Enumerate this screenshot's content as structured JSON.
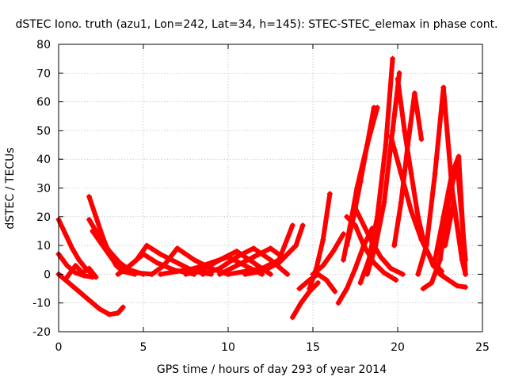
{
  "chart_data": {
    "type": "scatter",
    "title": "dSTEC Iono. truth (azu1, Lon=242, Lat=34, h=145): STEC-STEC_elemax in phase cont.",
    "xlabel": "GPS time / hours of day 293 of year 2014",
    "ylabel": "dSTEC  / TECUs",
    "xlim": [
      0,
      25
    ],
    "ylim": [
      -20,
      80
    ],
    "x_ticks": [
      "0",
      "5",
      "10",
      "15",
      "20",
      "25"
    ],
    "y_ticks": [
      "-20",
      "-10",
      "0",
      "10",
      "20",
      "30",
      "40",
      "50",
      "60",
      "70",
      "80"
    ],
    "grid": true,
    "marker": "+",
    "color": "#ff0000",
    "series": [
      {
        "x": [
          0.0,
          0.3,
          0.7,
          1.2,
          1.8,
          2.4,
          3.0,
          3.5,
          3.8
        ],
        "y": [
          0.0,
          -1.5,
          -3.5,
          -6.0,
          -9.0,
          -12.0,
          -14.0,
          -13.5,
          -11.5
        ]
      },
      {
        "x": [
          0.0,
          0.4,
          0.8,
          1.2,
          1.6,
          2.0
        ],
        "y": [
          19.0,
          14.0,
          9.0,
          5.0,
          2.0,
          0.0
        ]
      },
      {
        "x": [
          0.0,
          0.5,
          1.0,
          1.5,
          2.0
        ],
        "y": [
          7.0,
          3.0,
          0.5,
          -0.5,
          -1.0
        ]
      },
      {
        "x": [
          0.5,
          1.0,
          1.4,
          1.8,
          2.2
        ],
        "y": [
          -1.0,
          3.0,
          0.5,
          2.0,
          -1.0
        ]
      },
      {
        "x": [
          1.8,
          2.2,
          2.6,
          3.0,
          3.4,
          3.8,
          4.5
        ],
        "y": [
          27.0,
          20.0,
          13.0,
          7.0,
          3.0,
          1.0,
          0.0
        ]
      },
      {
        "x": [
          1.8,
          2.4,
          3.0,
          3.6,
          4.2,
          5.0
        ],
        "y": [
          19.0,
          13.0,
          8.0,
          4.0,
          1.5,
          0.0
        ]
      },
      {
        "x": [
          2.0,
          2.6,
          3.2,
          3.8,
          4.6,
          5.5
        ],
        "y": [
          15.0,
          10.0,
          5.0,
          2.0,
          0.5,
          0.0
        ]
      },
      {
        "x": [
          3.5,
          4.2,
          5.0,
          5.8,
          6.8,
          8.0
        ],
        "y": [
          0.0,
          3.0,
          7.0,
          4.0,
          1.5,
          0.0
        ]
      },
      {
        "x": [
          4.0,
          4.6,
          5.2,
          6.0,
          7.0,
          8.0,
          9.0
        ],
        "y": [
          2.0,
          5.0,
          10.0,
          7.0,
          4.0,
          1.0,
          0.0
        ]
      },
      {
        "x": [
          5.5,
          6.2,
          7.0,
          8.0,
          9.0,
          10.0
        ],
        "y": [
          0.0,
          3.0,
          9.0,
          5.0,
          2.0,
          0.0
        ]
      },
      {
        "x": [
          6.0,
          7.0,
          8.0,
          9.0,
          10.0,
          11.0,
          12.0
        ],
        "y": [
          0.0,
          1.0,
          2.0,
          4.0,
          6.0,
          3.0,
          0.0
        ]
      },
      {
        "x": [
          7.5,
          8.5,
          9.5,
          10.5,
          11.5,
          12.5
        ],
        "y": [
          0.0,
          1.5,
          5.0,
          8.0,
          4.0,
          0.0
        ]
      },
      {
        "x": [
          8.5,
          9.5,
          10.5,
          11.5,
          12.5,
          13.5
        ],
        "y": [
          0.0,
          2.0,
          6.0,
          9.0,
          5.0,
          0.0
        ]
      },
      {
        "x": [
          9.5,
          10.5,
          11.5,
          12.5,
          13.2
        ],
        "y": [
          0.0,
          3.0,
          6.0,
          9.0,
          6.0
        ]
      },
      {
        "x": [
          10.0,
          11.0,
          12.0,
          13.0,
          13.8
        ],
        "y": [
          0.0,
          1.0,
          2.0,
          5.0,
          17.0
        ]
      },
      {
        "x": [
          11.0,
          12.0,
          13.0,
          14.0,
          14.4
        ],
        "y": [
          0.0,
          1.0,
          4.0,
          10.0,
          17.0
        ]
      },
      {
        "x": [
          13.8,
          14.3,
          14.8,
          15.3
        ],
        "y": [
          -15.0,
          -10.0,
          -6.0,
          -3.0
        ]
      },
      {
        "x": [
          14.2,
          14.8,
          15.3,
          15.8,
          16.3
        ],
        "y": [
          -5.0,
          -2.0,
          0.0,
          -2.0,
          -6.0
        ]
      },
      {
        "x": [
          14.8,
          15.2,
          15.6,
          16.0
        ],
        "y": [
          -5.0,
          2.0,
          12.0,
          28.0
        ]
      },
      {
        "x": [
          15.0,
          15.6,
          16.2,
          16.8
        ],
        "y": [
          0.0,
          3.0,
          8.0,
          14.0
        ]
      },
      {
        "x": [
          16.5,
          17.0,
          17.5,
          18.0,
          18.5
        ],
        "y": [
          -10.0,
          -5.0,
          2.0,
          10.0,
          16.0
        ]
      },
      {
        "x": [
          16.8,
          17.2,
          17.6,
          18.2,
          18.8
        ],
        "y": [
          5.0,
          17.0,
          30.0,
          45.0,
          58.0
        ]
      },
      {
        "x": [
          17.0,
          17.4,
          17.8,
          18.2,
          18.6
        ],
        "y": [
          10.0,
          20.0,
          32.0,
          45.0,
          58.0
        ]
      },
      {
        "x": [
          17.0,
          17.5,
          18.0,
          18.6,
          19.2,
          19.9
        ],
        "y": [
          20.0,
          17.0,
          10.0,
          4.0,
          0.5,
          -2.0
        ]
      },
      {
        "x": [
          17.5,
          18.0,
          18.5,
          19.0,
          19.6,
          20.3
        ],
        "y": [
          23.0,
          17.0,
          11.0,
          6.0,
          2.0,
          0.0
        ]
      },
      {
        "x": [
          17.8,
          18.3,
          18.8,
          19.3,
          19.7
        ],
        "y": [
          -3.0,
          5.0,
          20.0,
          45.0,
          75.0
        ]
      },
      {
        "x": [
          18.2,
          18.7,
          19.2,
          19.7,
          20.1
        ],
        "y": [
          0.0,
          10.0,
          25.0,
          50.0,
          70.0
        ]
      },
      {
        "x": [
          19.6,
          20.2,
          20.8,
          21.4,
          22.0,
          22.6
        ],
        "y": [
          48.0,
          35.0,
          22.0,
          12.0,
          5.0,
          1.0
        ]
      },
      {
        "x": [
          20.0,
          20.4,
          20.8,
          21.2,
          21.6,
          22.1,
          22.6
        ],
        "y": [
          68.0,
          50.0,
          35.0,
          20.0,
          10.0,
          3.0,
          0.0
        ]
      },
      {
        "x": [
          19.8,
          20.2,
          20.6,
          21.0,
          21.4
        ],
        "y": [
          10.0,
          25.0,
          45.0,
          63.0,
          47.0
        ]
      },
      {
        "x": [
          21.2,
          21.7,
          22.2,
          22.7,
          23.2,
          23.8
        ],
        "y": [
          0.0,
          10.0,
          35.0,
          65.0,
          30.0,
          5.0
        ]
      },
      {
        "x": [
          21.5,
          22.0,
          22.5,
          23.0,
          23.5,
          24.0
        ],
        "y": [
          -5.0,
          -3.0,
          5.0,
          25.0,
          39.0,
          5.0
        ]
      },
      {
        "x": [
          22.2,
          22.7,
          23.2,
          23.6,
          24.0
        ],
        "y": [
          5.0,
          20.0,
          35.0,
          41.0,
          0.0
        ]
      },
      {
        "x": [
          22.5,
          23.0,
          23.5,
          24.0
        ],
        "y": [
          0.0,
          -2.0,
          -4.0,
          -4.5
        ]
      },
      {
        "x": [
          22.8,
          23.3,
          23.8,
          24.0
        ],
        "y": [
          10.0,
          25.0,
          5.0,
          0.0
        ]
      }
    ]
  }
}
